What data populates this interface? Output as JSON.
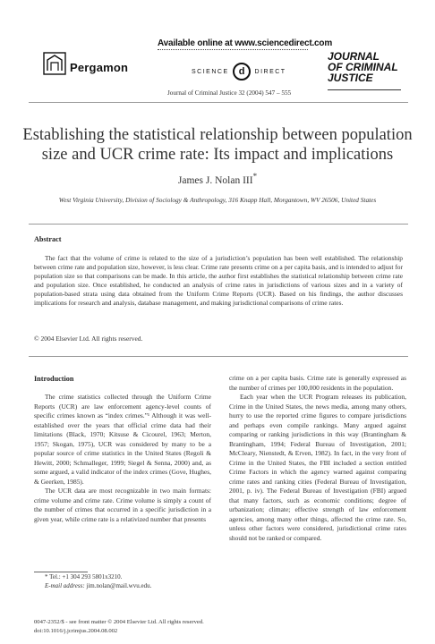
{
  "header": {
    "publisher": "Pergamon",
    "available_online": "Available online at www.sciencedirect.com",
    "sd_left": "SCIENCE",
    "sd_at": "d",
    "sd_right": "DIRECT",
    "journal_logo": [
      "JOURNAL",
      "OF CRIMINAL",
      "JUSTICE"
    ],
    "citation": "Journal of Criminal Justice 32 (2004) 547 – 555"
  },
  "article": {
    "title_line1": "Establishing the statistical relationship between population",
    "title_line2": "size and UCR crime rate: Its impact and implications",
    "author": "James J. Nolan III",
    "author_mark": "*",
    "affiliation": "West Virginia University, Division of Sociology & Anthropology, 316 Knapp Hall, Morgantown, WV 26506, United States"
  },
  "abstract": {
    "heading": "Abstract",
    "body": "The fact that the volume of crime is related to the size of a jurisdiction’s population has been well established. The relationship between crime rate and population size, however, is less clear. Crime rate presents crime on a per capita basis, and is intended to adjust for population size so that comparisons can be made. In this article, the author first establishes the statistical relationship between crime rate and population size. Once established, he conducted an analysis of crime rates in jurisdictions of various sizes and in a variety of population-based strata using data obtained from the Uniform Crime Reports (UCR). Based on his findings, the author discusses implications for research and analysis, database management, and making jurisdictional comparisons of crime rates.",
    "copyright": "© 2004 Elsevier Ltd. All rights reserved."
  },
  "intro": {
    "heading": "Introduction",
    "col1_p1": "The crime statistics collected through the Uniform Crime Reports (UCR) are law enforcement agency-level counts of specific crimes known as “index crimes.”¹ Although it was well-established over the years that official crime data had their limitations (Black, 1970; Kitsuse & Cicourel, 1963; Merton, 1957; Skogan, 1975), UCR was considered by many to be a popular source of crime statistics in the United States (Regoli & Hewitt, 2000; Schmalleger, 1999; Siegel & Senna, 2000) and, as some argued, a valid indicator of the index crimes (Gove, Hughes, & Geerken, 1985).",
    "col1_p2": "The UCR data are most recognizable in two main formats: crime volume and crime rate. Crime volume is simply a count of the number of crimes that occurred in a specific jurisdiction in a given year, while crime rate is a relativized number that presents",
    "col2_p1": "crime on a per capita basis. Crime rate is generally expressed as the number of crimes per 100,000 residents in the population.",
    "col2_p2": "Each year when the UCR Program releases its publication, Crime in the United States, the news media, among many others, hurry to use the reported crime figures to compare jurisdictions and perhaps even compile rankings. Many argued against comparing or ranking jurisdictions in this way (Brantingham & Brantingham, 1994; Federal Bureau of Investigation, 2001; McCleary, Nienstedt, & Erven, 1982). In fact, in the very front of Crime in the United States, the FBI included a section entitled Crime Factors in which the agency warned against comparing crime rates and ranking cities (Federal Bureau of Investigation, 2001, p. iv). The Federal Bureau of Investigation (FBI) argued that many factors, such as economic conditions; degree of urbanization; climate; effective strength of law enforcement agencies, among many other things, affected the crime rate. So, unless other factors were considered, jurisdictional crime rates should not be ranked or compared."
  },
  "footnote": {
    "tel": "* Tel.: +1 304 293 5801x3210.",
    "email_label": "E-mail address:",
    "email": "jim.nolan@mail.wvu.edu."
  },
  "bottom": {
    "issn": "0047-2352/$ - see front matter © 2004 Elsevier Ltd. All rights reserved.",
    "doi": "doi:10.1016/j.jcrimjus.2004.08.002"
  }
}
